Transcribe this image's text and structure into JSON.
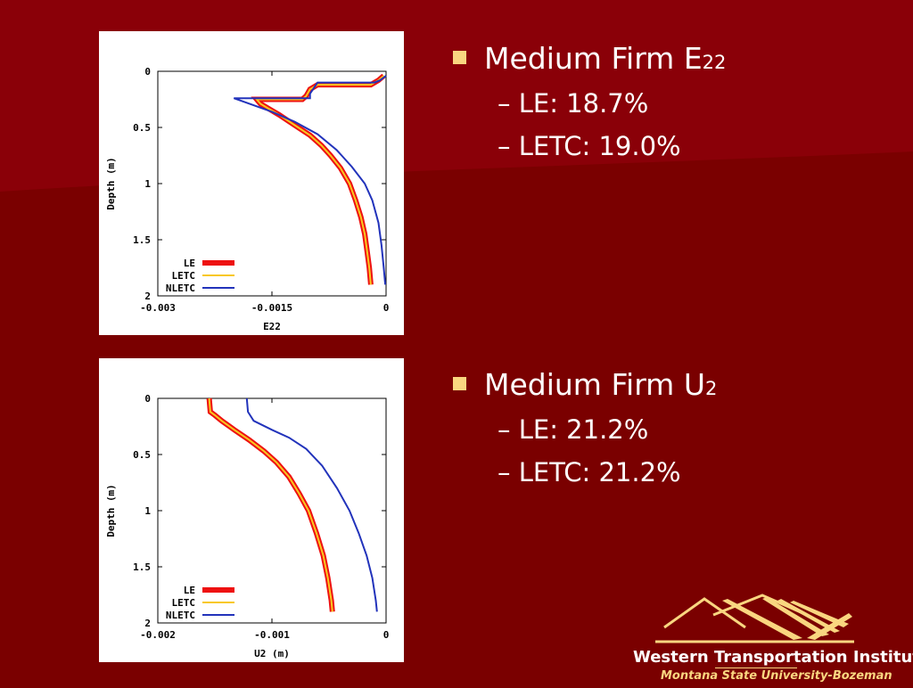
{
  "theme": {
    "background": "#7a0000",
    "background_light": "#8a0008",
    "bullet_color": "#f9d680",
    "text_color": "#ffffff"
  },
  "chart_data": [
    {
      "type": "line",
      "xlabel": "E22",
      "ylabel": "Depth (m)",
      "xlim": [
        -0.003,
        0
      ],
      "ylim": [
        2,
        0
      ],
      "xticks": [
        "-0.003",
        "-0.0015",
        "0"
      ],
      "yticks": [
        "0",
        "0.5",
        "1",
        "1.5",
        "2"
      ],
      "legend_position": "bottom-left",
      "series": [
        {
          "name": "LE",
          "color": "#ee1111",
          "width": 6,
          "points": [
            [
              -3e-05,
              0.04
            ],
            [
              -0.0001,
              0.08
            ],
            [
              -0.0002,
              0.12
            ],
            [
              -0.0009,
              0.12
            ],
            [
              -0.001,
              0.16
            ],
            [
              -0.00105,
              0.22
            ],
            [
              -0.0011,
              0.25
            ],
            [
              -0.0017,
              0.25
            ],
            [
              -0.00165,
              0.29
            ],
            [
              -0.00155,
              0.33
            ],
            [
              -0.0014,
              0.39
            ],
            [
              -0.0012,
              0.48
            ],
            [
              -0.001,
              0.57
            ],
            [
              -0.00085,
              0.66
            ],
            [
              -0.00073,
              0.75
            ],
            [
              -0.0006,
              0.86
            ],
            [
              -0.00048,
              1.0
            ],
            [
              -0.0004,
              1.15
            ],
            [
              -0.00033,
              1.3
            ],
            [
              -0.00028,
              1.45
            ],
            [
              -0.00025,
              1.6
            ],
            [
              -0.00022,
              1.75
            ],
            [
              -0.0002,
              1.9
            ]
          ]
        },
        {
          "name": "LETC",
          "color": "#f8c820",
          "width": 2,
          "points": [
            [
              -3e-05,
              0.04
            ],
            [
              -0.0001,
              0.08
            ],
            [
              -0.0002,
              0.12
            ],
            [
              -0.0009,
              0.12
            ],
            [
              -0.001,
              0.16
            ],
            [
              -0.00105,
              0.22
            ],
            [
              -0.0011,
              0.25
            ],
            [
              -0.0017,
              0.25
            ],
            [
              -0.00165,
              0.29
            ],
            [
              -0.00155,
              0.33
            ],
            [
              -0.0014,
              0.39
            ],
            [
              -0.0012,
              0.48
            ],
            [
              -0.001,
              0.57
            ],
            [
              -0.00085,
              0.66
            ],
            [
              -0.00073,
              0.75
            ],
            [
              -0.0006,
              0.86
            ],
            [
              -0.00048,
              1.0
            ],
            [
              -0.0004,
              1.15
            ],
            [
              -0.00033,
              1.3
            ],
            [
              -0.00028,
              1.45
            ],
            [
              -0.00025,
              1.6
            ],
            [
              -0.00022,
              1.75
            ],
            [
              -0.0002,
              1.9
            ]
          ]
        },
        {
          "name": "NLETC",
          "color": "#2233bb",
          "width": 2,
          "points": [
            [
              0,
              0.04
            ],
            [
              -8e-05,
              0.08
            ],
            [
              -0.00015,
              0.1
            ],
            [
              -0.0009,
              0.1
            ],
            [
              -0.00095,
              0.15
            ],
            [
              -0.001,
              0.2
            ],
            [
              -0.001,
              0.24
            ],
            [
              -0.002,
              0.24
            ],
            [
              -0.00175,
              0.3
            ],
            [
              -0.0015,
              0.36
            ],
            [
              -0.0012,
              0.45
            ],
            [
              -0.0009,
              0.56
            ],
            [
              -0.00065,
              0.7
            ],
            [
              -0.00045,
              0.85
            ],
            [
              -0.00028,
              1.0
            ],
            [
              -0.00018,
              1.15
            ],
            [
              -0.0001,
              1.35
            ],
            [
              -6e-05,
              1.55
            ],
            [
              -3e-05,
              1.75
            ],
            [
              -1e-05,
              1.9
            ]
          ]
        }
      ]
    },
    {
      "type": "line",
      "xlabel": "U2 (m)",
      "ylabel": "Depth (m)",
      "xlim": [
        -0.002,
        0
      ],
      "ylim": [
        2,
        0
      ],
      "xticks": [
        "-0.002",
        "-0.001",
        "0"
      ],
      "yticks": [
        "0",
        "0.5",
        "1",
        "1.5",
        "2"
      ],
      "legend_position": "bottom-left",
      "series": [
        {
          "name": "LE",
          "color": "#ee1111",
          "width": 6,
          "points": [
            [
              -0.00155,
              0
            ],
            [
              -0.00154,
              0.12
            ],
            [
              -0.0015,
              0.15
            ],
            [
              -0.00144,
              0.2
            ],
            [
              -0.00133,
              0.28
            ],
            [
              -0.0012,
              0.37
            ],
            [
              -0.00107,
              0.47
            ],
            [
              -0.00096,
              0.57
            ],
            [
              -0.00085,
              0.7
            ],
            [
              -0.00076,
              0.85
            ],
            [
              -0.00068,
              1.0
            ],
            [
              -0.00061,
              1.2
            ],
            [
              -0.00055,
              1.4
            ],
            [
              -0.00051,
              1.6
            ],
            [
              -0.00048,
              1.8
            ],
            [
              -0.00047,
              1.9
            ]
          ]
        },
        {
          "name": "LETC",
          "color": "#f8c820",
          "width": 2,
          "points": [
            [
              -0.00155,
              0
            ],
            [
              -0.00154,
              0.12
            ],
            [
              -0.0015,
              0.15
            ],
            [
              -0.00144,
              0.2
            ],
            [
              -0.00133,
              0.28
            ],
            [
              -0.0012,
              0.37
            ],
            [
              -0.00107,
              0.47
            ],
            [
              -0.00096,
              0.57
            ],
            [
              -0.00085,
              0.7
            ],
            [
              -0.00076,
              0.85
            ],
            [
              -0.00068,
              1.0
            ],
            [
              -0.00061,
              1.2
            ],
            [
              -0.00055,
              1.4
            ],
            [
              -0.00051,
              1.6
            ],
            [
              -0.00048,
              1.8
            ],
            [
              -0.00047,
              1.9
            ]
          ]
        },
        {
          "name": "NLETC",
          "color": "#2233bb",
          "width": 2,
          "points": [
            [
              -0.00122,
              0
            ],
            [
              -0.00121,
              0.12
            ],
            [
              -0.00116,
              0.2
            ],
            [
              -0.001,
              0.28
            ],
            [
              -0.00085,
              0.35
            ],
            [
              -0.0007,
              0.45
            ],
            [
              -0.00056,
              0.6
            ],
            [
              -0.00043,
              0.8
            ],
            [
              -0.00032,
              1.0
            ],
            [
              -0.00024,
              1.2
            ],
            [
              -0.00017,
              1.4
            ],
            [
              -0.00012,
              1.6
            ],
            [
              -9e-05,
              1.8
            ],
            [
              -8e-05,
              1.9
            ]
          ]
        }
      ]
    }
  ],
  "bullets": [
    {
      "title": "Medium Firm E",
      "subscript": "22",
      "items": [
        "– LE: 18.7%",
        "– LETC: 19.0%"
      ]
    },
    {
      "title": "Medium Firm U",
      "subscript": "2",
      "items": [
        "– LE: 21.2%",
        "– LETC: 21.2%"
      ]
    }
  ],
  "logo": {
    "title": "Western Transportation Institute",
    "subtitle": "Montana State University-Bozeman"
  }
}
